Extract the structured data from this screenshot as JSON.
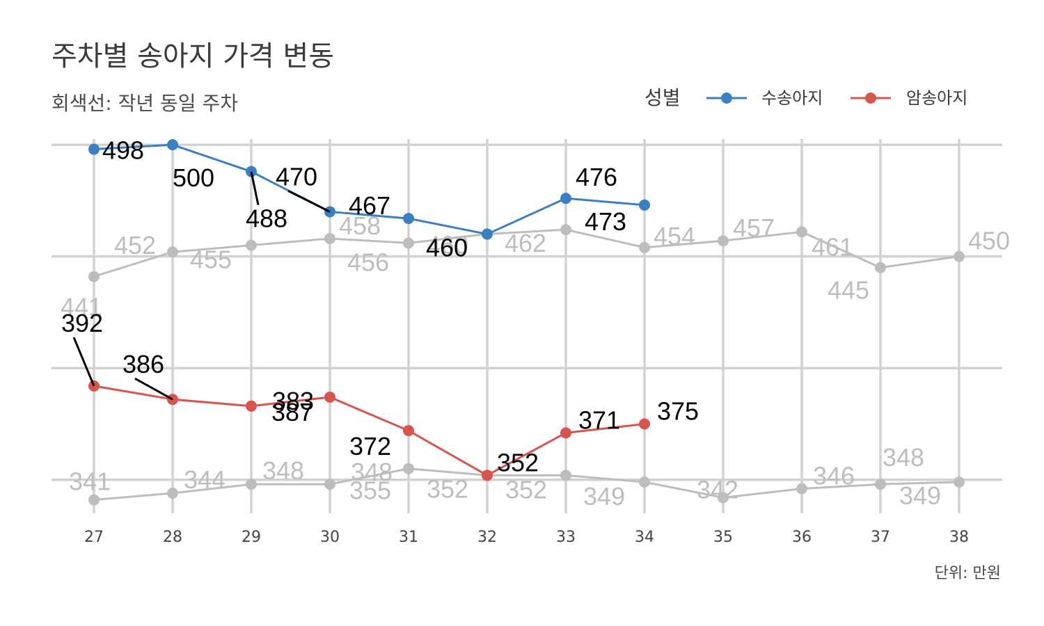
{
  "chart_data": {
    "type": "line",
    "title": "주차별 송아지 가격 변동",
    "subtitle": "회색선: 작년 동일 주차",
    "caption": "단위: 만원",
    "legend": {
      "title": "성별",
      "placement": "top-right"
    },
    "x": [
      27,
      28,
      29,
      30,
      31,
      32,
      33,
      34,
      35,
      36,
      37,
      38
    ],
    "xlim": [
      27,
      38
    ],
    "ylim": [
      330,
      510
    ],
    "grid": true,
    "series": [
      {
        "name": "수송아지",
        "color": "#3a7fc1",
        "x": [
          27,
          28,
          29,
          30,
          31,
          32,
          33,
          34
        ],
        "values": [
          498,
          500,
          488,
          470,
          467,
          460,
          476,
          473
        ],
        "labels": [
          "498",
          "500",
          "488",
          "470",
          "467",
          "460",
          "476",
          "473"
        ]
      },
      {
        "name": "암송아지",
        "color": "#d9534f",
        "x": [
          27,
          28,
          29,
          30,
          31,
          32,
          33,
          34
        ],
        "values": [
          392,
          386,
          383,
          387,
          372,
          352,
          371,
          375
        ],
        "labels": [
          "392",
          "386",
          "383",
          "387",
          "372",
          "352",
          "371",
          "375"
        ]
      },
      {
        "color": "#bdbdbd",
        "x": [
          27,
          28,
          29,
          30,
          31,
          32,
          33,
          34,
          35,
          36,
          37,
          38
        ],
        "values": [
          441,
          452,
          455,
          458,
          456,
          460,
          462,
          454,
          457,
          461,
          445,
          450
        ],
        "labels": [
          "441",
          "452",
          "455",
          "458",
          "456",
          "460",
          "462",
          "454",
          "457",
          "461",
          "445",
          "450"
        ]
      },
      {
        "color": "#bdbdbd",
        "x": [
          27,
          28,
          29,
          30,
          31,
          32,
          33,
          34,
          35,
          36,
          37,
          38
        ],
        "values": [
          341,
          344,
          348,
          348,
          355,
          352,
          352,
          349,
          342,
          346,
          348,
          349
        ],
        "labels": [
          "341",
          "344",
          "348",
          "348",
          "355",
          "352",
          "352",
          "349",
          "342",
          "346",
          "348",
          "349"
        ]
      }
    ]
  }
}
